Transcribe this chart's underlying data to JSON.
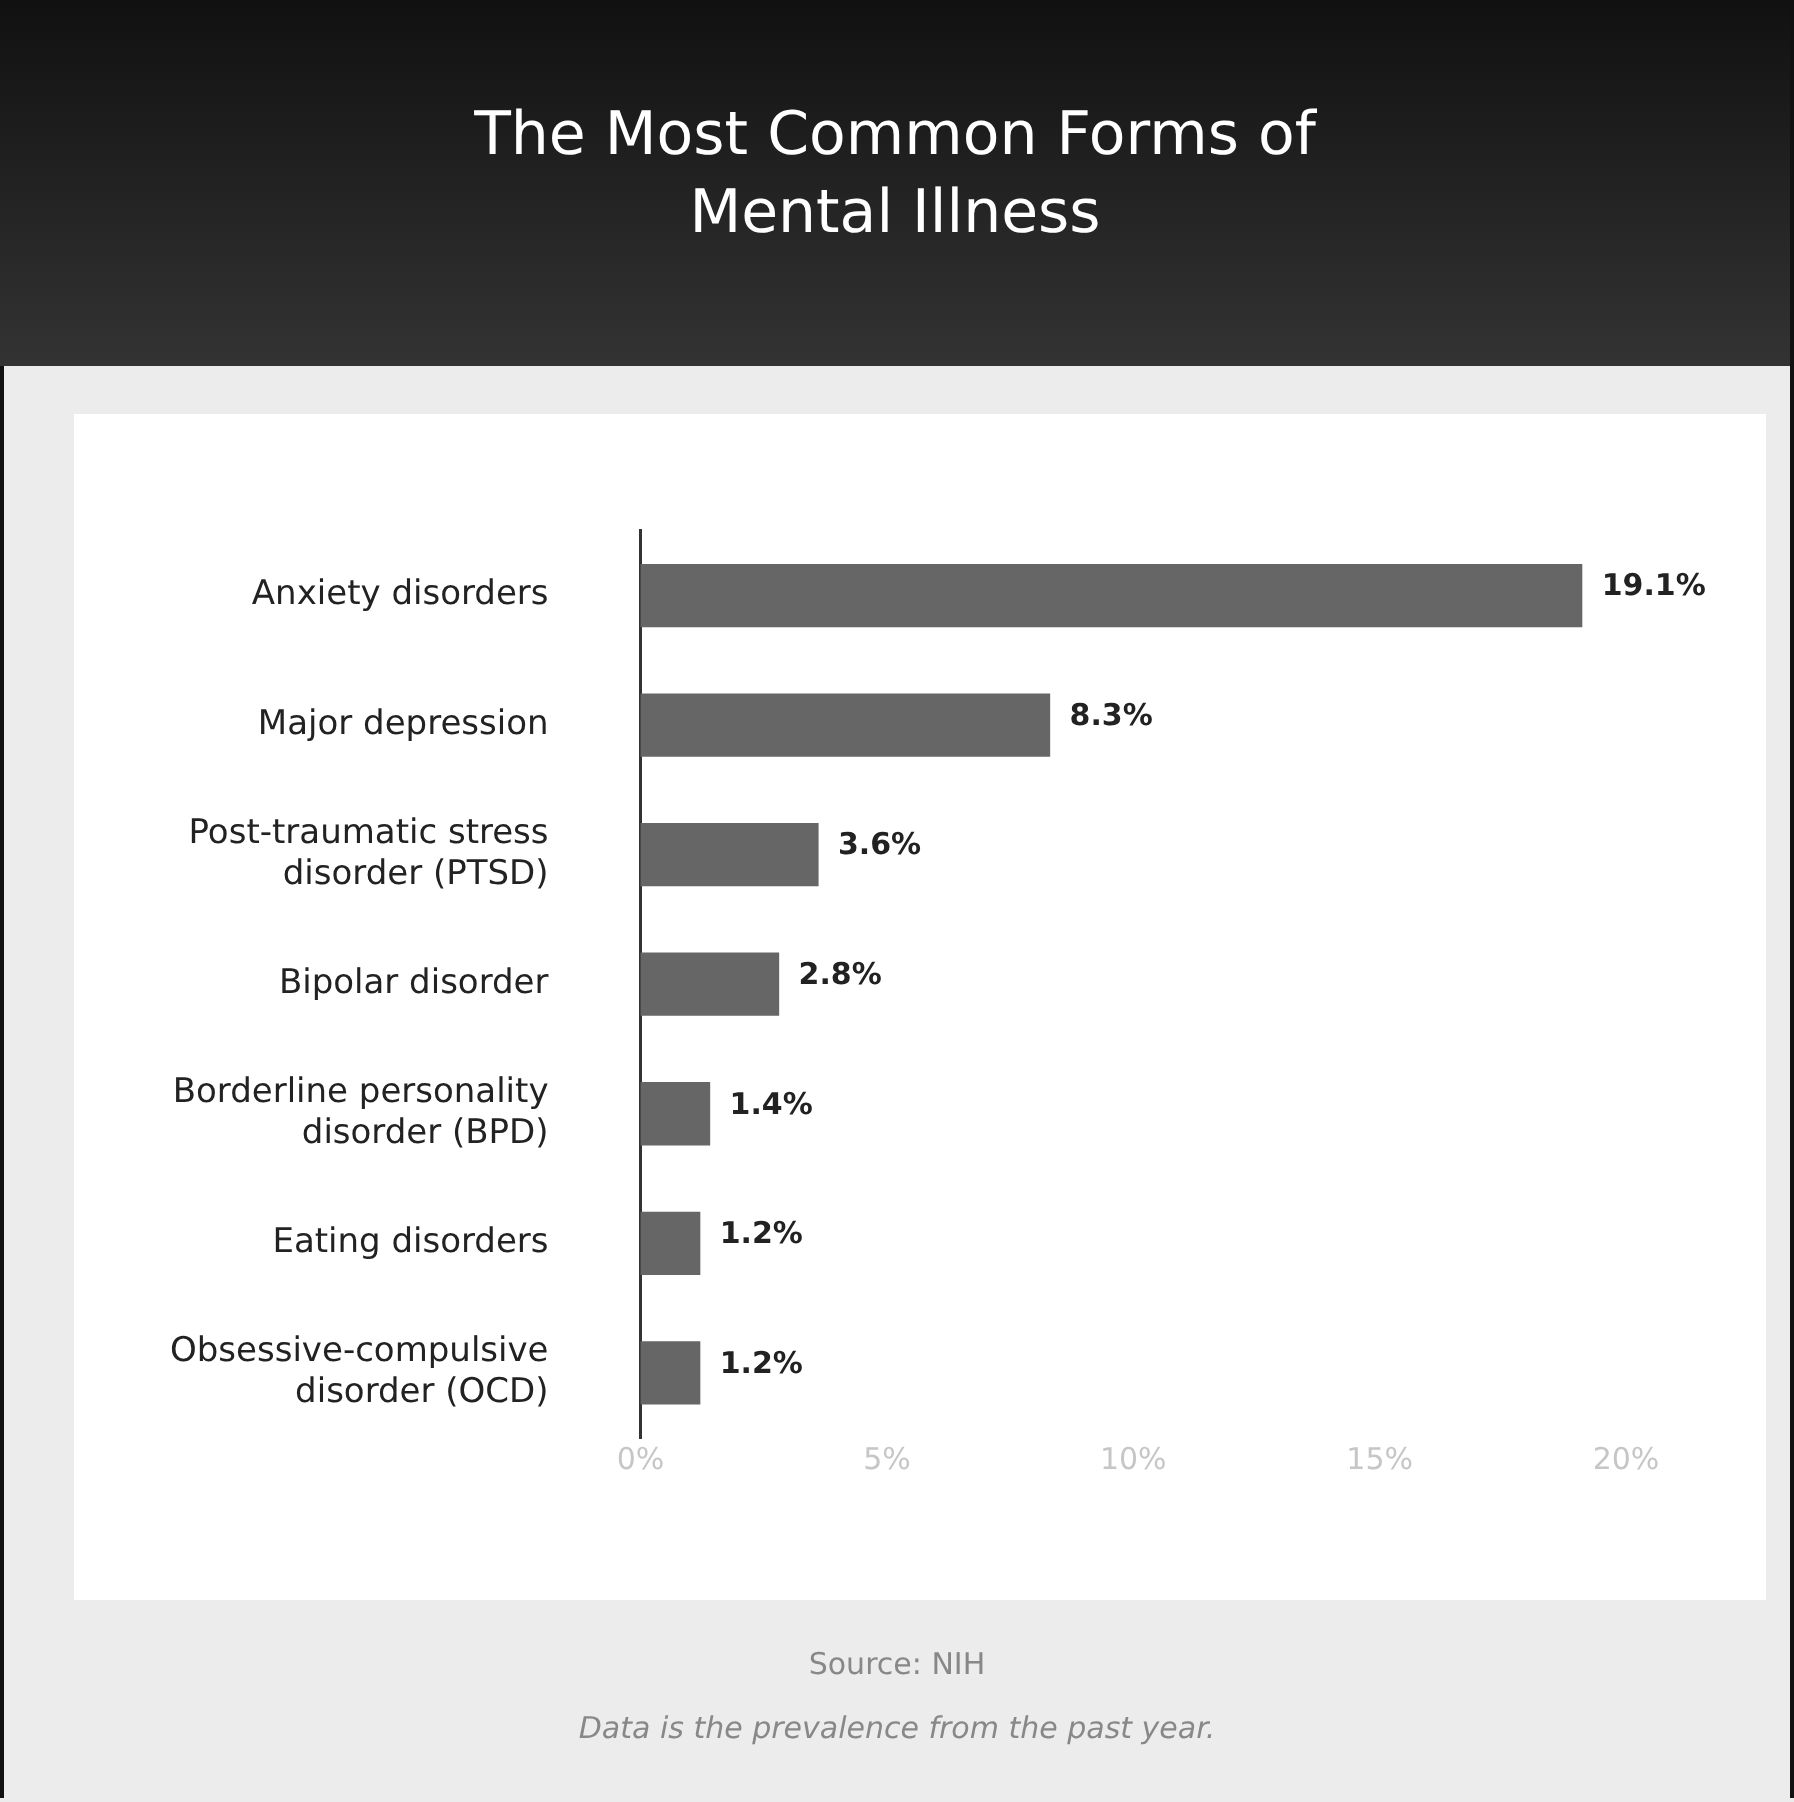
{
  "chart_data": {
    "type": "bar",
    "orientation": "horizontal",
    "title": "The Most Common Forms of Mental Illness",
    "categories": [
      "Anxiety disorders",
      "Major depression",
      "Post-traumatic stress disorder (PTSD)",
      "Bipolar disorder",
      "Borderline personality disorder (BPD)",
      "Eating disorders",
      "Obsessive-compulsive disorder (OCD)"
    ],
    "values": [
      19.1,
      8.3,
      3.6,
      2.8,
      1.4,
      1.2,
      1.2
    ],
    "value_labels": [
      "19.1%",
      "8.3%",
      "3.6%",
      "2.8%",
      "1.4%",
      "1.2%",
      "1.2%"
    ],
    "color": "#666666",
    "xlim": [
      0,
      20
    ],
    "xticks": [
      {
        "value": 0,
        "label": "0%"
      },
      {
        "value": 5,
        "label": "5%"
      },
      {
        "value": 10,
        "label": "10%"
      },
      {
        "value": 15,
        "label": "15%"
      },
      {
        "value": 20,
        "label": "20%"
      }
    ],
    "annotations": [
      "Source: NIH",
      "Data is the prevalence from the past year."
    ]
  }
}
